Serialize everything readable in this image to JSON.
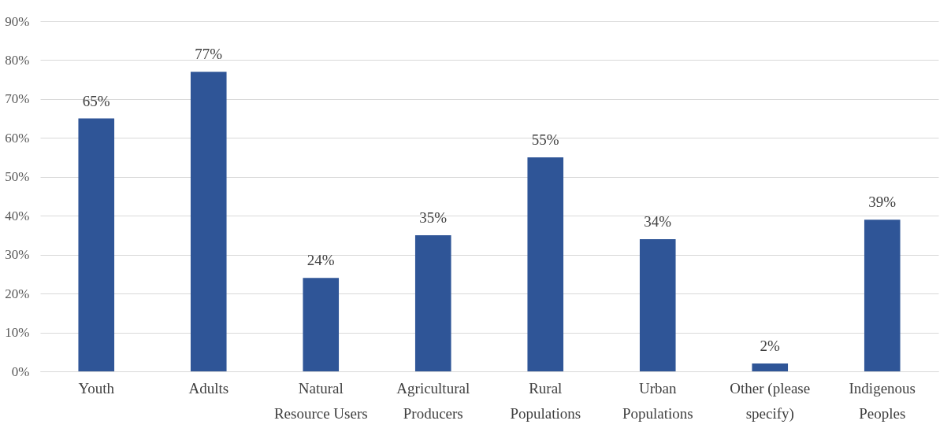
{
  "chart_data": {
    "type": "bar",
    "categories": [
      "Youth",
      "Adults",
      "Natural Resource Users",
      "Agricultural Producers",
      "Rural Populations",
      "Urban Populations",
      "Other (please specify)",
      "Indigenous Peoples"
    ],
    "values": [
      65,
      77,
      24,
      35,
      55,
      34,
      2,
      39
    ],
    "value_labels": [
      "65%",
      "77%",
      "24%",
      "35%",
      "55%",
      "34%",
      "2%",
      "39%"
    ],
    "color": "#2f5597",
    "ylim": [
      0,
      90
    ],
    "yticks": [
      {
        "value": 0,
        "label": "0%"
      },
      {
        "value": 10,
        "label": "10%"
      },
      {
        "value": 20,
        "label": "20%"
      },
      {
        "value": 30,
        "label": "30%"
      },
      {
        "value": 40,
        "label": "40%"
      },
      {
        "value": 50,
        "label": "50%"
      },
      {
        "value": 60,
        "label": "60%"
      },
      {
        "value": 70,
        "label": "70%"
      },
      {
        "value": 80,
        "label": "80%"
      },
      {
        "value": 90,
        "label": "90%"
      }
    ],
    "grid": "y"
  }
}
